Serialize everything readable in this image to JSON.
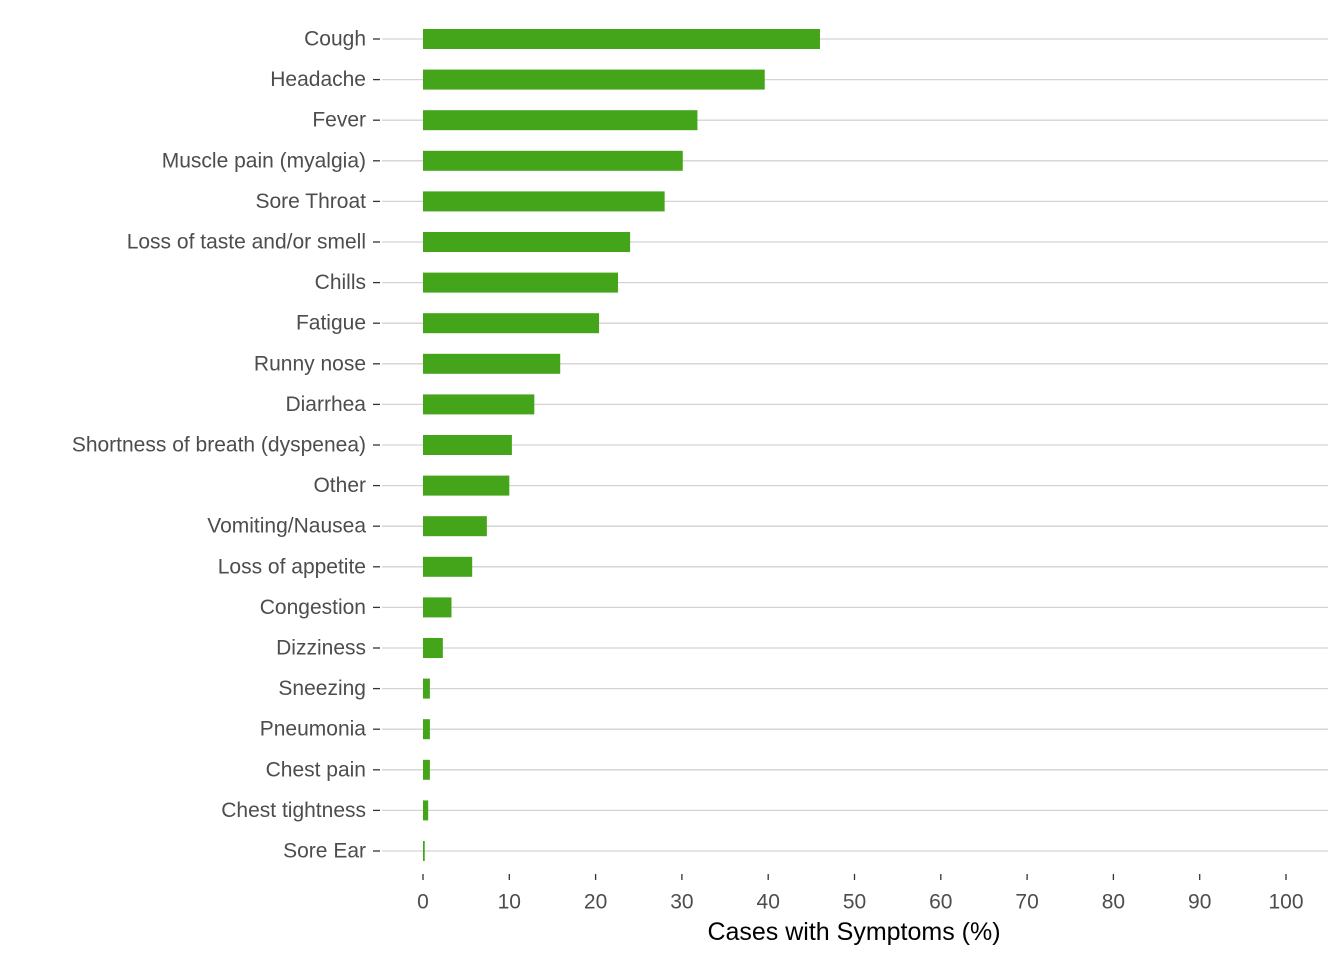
{
  "chart_data": {
    "type": "bar",
    "orientation": "horizontal",
    "categories": [
      "Cough",
      "Headache",
      "Fever",
      "Muscle pain (myalgia)",
      "Sore Throat",
      "Loss of taste and/or smell",
      "Chills",
      "Fatigue",
      "Runny nose",
      "Diarrhea",
      "Shortness of breath (dyspenea)",
      "Other",
      "Vomiting/Nausea",
      "Loss of appetite",
      "Congestion",
      "Dizziness",
      "Sneezing",
      "Pneumonia",
      "Chest pain",
      "Chest tightness",
      "Sore Ear"
    ],
    "values": [
      46.0,
      39.6,
      31.8,
      30.1,
      28.0,
      24.0,
      22.6,
      20.4,
      15.9,
      12.9,
      10.3,
      10.0,
      7.4,
      5.7,
      3.3,
      2.3,
      0.8,
      0.8,
      0.8,
      0.6,
      0.2
    ],
    "title": "",
    "xlabel": "Cases with Symptoms (%)",
    "ylabel": "",
    "xlim": [
      0,
      100
    ],
    "xticks": [
      "0",
      "10",
      "20",
      "30",
      "40",
      "50",
      "60",
      "70",
      "80",
      "90",
      "100"
    ],
    "bar_color": "#44a51a",
    "gridlines": "horizontal",
    "grid_color": "#d3d3d3",
    "legend": "none"
  }
}
